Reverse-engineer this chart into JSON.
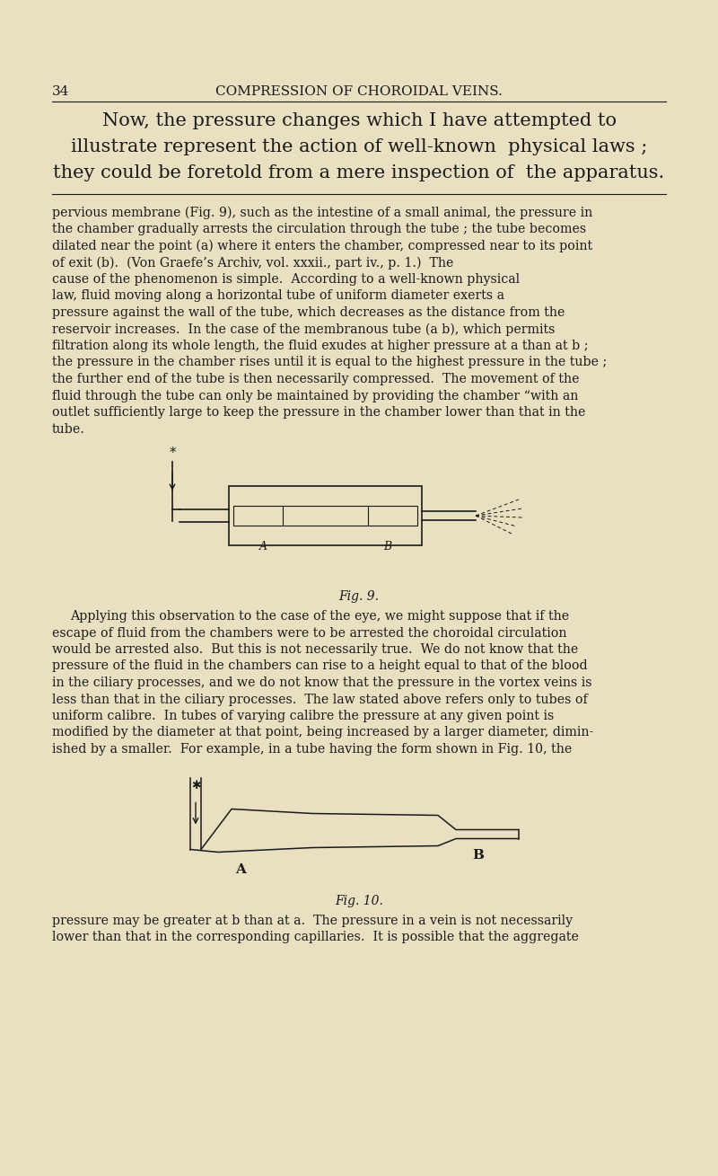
{
  "bg_color": "#e8e0c0",
  "text_color": "#1a1a1a",
  "page_num": "34",
  "header": "COMPRESSION OF CHOROIDAL VEINS.",
  "intro_lines": [
    "Now, the pressure changes which I have attempted to",
    "illustrate represent the action of well-known  physical laws ;",
    "they could be foretold from a mere inspection of  the apparatus."
  ],
  "body1_lines": [
    "pervious membrane (Fig. 9), such as the intestine of a small animal, the pressure in",
    "the chamber gradually arrests the circulation through the tube ; the tube becomes",
    "dilated near the point (a) where it enters the chamber, compressed near to its point",
    "of exit (b).  (Von Graefe’s Archiv, vol. xxxii., part iv., p. 1.)  The",
    "cause of the phenomenon is simple.  According to a well-known physical",
    "law, fluid moving along a horizontal tube of uniform diameter exerts a",
    "pressure against the wall of the tube, which decreases as the distance from the",
    "reservoir increases.  In the case of the membranous tube (a b), which permits",
    "filtration along its whole length, the fluid exudes at higher pressure at a than at b ;",
    "the pressure in the chamber rises until it is equal to the highest pressure in the tube ;",
    "the further end of the tube is then necessarily compressed.  The movement of the",
    "fluid through the tube can only be maintained by providing the chamber “with an",
    "outlet sufficiently large to keep the pressure in the chamber lower than that in the",
    "tube."
  ],
  "fig9_caption": "Fig. 9.",
  "body2_lines": [
    "Applying this observation to the case of the eye, we might suppose that if the",
    "escape of fluid from the chambers were to be arrested the choroidal circulation",
    "would be arrested also.  But this is not necessarily true.  We do not know that the",
    "pressure of the fluid in the chambers can rise to a height equal to that of the blood",
    "in the ciliary processes, and we do not know that the pressure in the vortex veins is",
    "less than that in the ciliary processes.  The law stated above refers only to tubes of",
    "uniform calibre.  In tubes of varying calibre the pressure at any given point is",
    "modified by the diameter at that point, being increased by a larger diameter, dimin-",
    "ished by a smaller.  For example, in a tube having the form shown in Fig. 10, the"
  ],
  "fig10_caption": "Fig. 10.",
  "body3_lines": [
    "pressure may be greater at b than at a.  The pressure in a vein is not necessarily",
    "lower than that in the corresponding capillaries.  It is possible that the aggregate"
  ]
}
